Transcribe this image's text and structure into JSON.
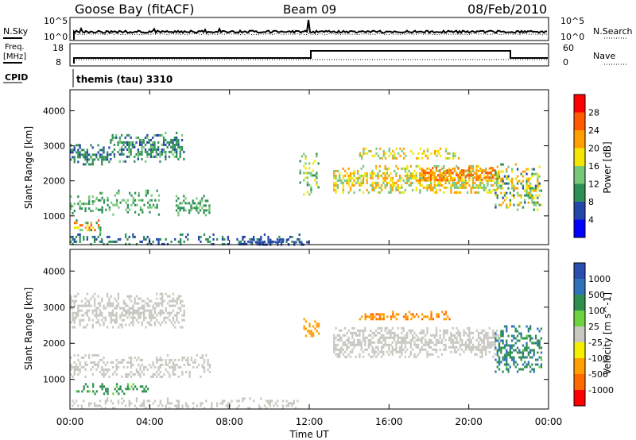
{
  "header": {
    "title": "Goose Bay (fitACF)",
    "beam": "Beam 09",
    "date": "08/Feb/2010"
  },
  "noise_panel": {
    "left_label": "N.Sky",
    "left_ticks": [
      "10^5",
      "10^0"
    ],
    "right_label": "N.Search",
    "right_ticks": [
      "10^5",
      "10^0"
    ]
  },
  "freq_panel": {
    "left_label_line1": "Freq.",
    "left_label_line2": "[MHz]",
    "left_ticks": [
      "18",
      "8"
    ],
    "right_label": "Nave",
    "right_ticks": [
      "60",
      "0"
    ],
    "cpid_label": "CPID",
    "cpid_text": "themis (tau) 3310"
  },
  "colors": {
    "power": [
      "#0000ff",
      "#2346a8",
      "#2e8f57",
      "#78c87a",
      "#f4e600",
      "#ff9f00",
      "#ff5a00",
      "#ff0000"
    ],
    "velocity": [
      "#2a4db0",
      "#2f72b8",
      "#2f8f4f",
      "#6fd33f",
      "#c8c8c0",
      "#f7ef00",
      "#ff9f00",
      "#ff6a00",
      "#ff0000"
    ]
  },
  "chart_data": [
    {
      "type": "heatmap",
      "title": "",
      "xlabel": "",
      "ylabel": "Slant Range [km]",
      "xlim": [
        0,
        24
      ],
      "ylim": [
        180,
        4600
      ],
      "y_ticks": [
        1000,
        2000,
        3000,
        4000
      ],
      "colorbar": {
        "label": "Power [dB]",
        "range": [
          0,
          32
        ],
        "tick_values": [
          4,
          8,
          12,
          16,
          20,
          24,
          28
        ],
        "tick_labels": [
          "4",
          "8",
          "12",
          "16",
          "20",
          "24",
          "28"
        ]
      },
      "scatter_regions": [
        {
          "t": [
            0.0,
            2.0
          ],
          "r": [
            2450,
            3050
          ],
          "values": [
            6,
            12
          ],
          "density": 0.5
        },
        {
          "t": [
            2.0,
            5.7
          ],
          "r": [
            2550,
            3400
          ],
          "values": [
            6,
            14
          ],
          "density": 0.5
        },
        {
          "t": [
            0.0,
            1.3
          ],
          "r": [
            1100,
            1650
          ],
          "values": [
            8,
            16
          ],
          "density": 0.4
        },
        {
          "t": [
            1.3,
            4.5
          ],
          "r": [
            1050,
            1750
          ],
          "values": [
            8,
            16
          ],
          "density": 0.25
        },
        {
          "t": [
            5.3,
            7.0
          ],
          "r": [
            1050,
            1600
          ],
          "values": [
            8,
            14
          ],
          "density": 0.45
        },
        {
          "t": [
            0.2,
            1.5
          ],
          "r": [
            550,
            900
          ],
          "values": [
            10,
            28
          ],
          "density": 0.5
        },
        {
          "t": [
            0.0,
            11.5
          ],
          "r": [
            200,
            500
          ],
          "values": [
            4,
            12
          ],
          "density": 0.3
        },
        {
          "t": [
            9.0,
            12.0
          ],
          "r": [
            180,
            350
          ],
          "values": [
            4,
            8
          ],
          "density": 0.5
        },
        {
          "t": [
            11.5,
            12.5
          ],
          "r": [
            1600,
            2800
          ],
          "values": [
            8,
            20
          ],
          "density": 0.3
        },
        {
          "t": [
            13.2,
            21.5
          ],
          "r": [
            1650,
            2450
          ],
          "values": [
            12,
            24
          ],
          "density": 0.6
        },
        {
          "t": [
            17.5,
            21.3
          ],
          "r": [
            2000,
            2400
          ],
          "values": [
            20,
            28
          ],
          "density": 0.6
        },
        {
          "t": [
            14.5,
            19.5
          ],
          "r": [
            2650,
            2950
          ],
          "values": [
            12,
            24
          ],
          "density": 0.4
        },
        {
          "t": [
            21.3,
            23.6
          ],
          "r": [
            1200,
            2500
          ],
          "values": [
            6,
            24
          ],
          "density": 0.45
        }
      ]
    },
    {
      "type": "heatmap",
      "title": "",
      "xlabel": "Time UT",
      "ylabel": "Slant Range [km]",
      "xlim": [
        0,
        24
      ],
      "ylim": [
        180,
        4600
      ],
      "y_ticks": [
        1000,
        2000,
        3000,
        4000
      ],
      "x_ticks": [
        0,
        4,
        8,
        12,
        16,
        20,
        24
      ],
      "x_tick_labels": [
        "00:00",
        "04:00",
        "08:00",
        "12:00",
        "16:00",
        "20:00",
        "00:00"
      ],
      "colorbar": {
        "label": "Velocity [m s^-1]",
        "tick_labels": [
          "1000",
          "500",
          "100",
          "25",
          "-25",
          "-100",
          "-500",
          "-1000"
        ]
      },
      "scatter_regions": [
        {
          "t": [
            0.0,
            5.7
          ],
          "r": [
            2450,
            3400
          ],
          "values": [
            -25,
            25
          ],
          "density": 0.5
        },
        {
          "t": [
            0.0,
            7.0
          ],
          "r": [
            1050,
            1700
          ],
          "values": [
            -25,
            25
          ],
          "density": 0.4
        },
        {
          "t": [
            0.2,
            4.0
          ],
          "r": [
            600,
            900
          ],
          "values": [
            50,
            300
          ],
          "density": 0.4
        },
        {
          "t": [
            0.0,
            11.5
          ],
          "r": [
            200,
            500
          ],
          "values": [
            -25,
            25
          ],
          "density": 0.3
        },
        {
          "t": [
            11.7,
            12.5
          ],
          "r": [
            2200,
            2700
          ],
          "values": [
            -500,
            -100
          ],
          "density": 0.4
        },
        {
          "t": [
            13.2,
            21.5
          ],
          "r": [
            1650,
            2450
          ],
          "values": [
            -25,
            25
          ],
          "density": 0.6
        },
        {
          "t": [
            14.5,
            19.0
          ],
          "r": [
            2650,
            2900
          ],
          "values": [
            -700,
            -100
          ],
          "density": 0.5
        },
        {
          "t": [
            21.3,
            23.6
          ],
          "r": [
            1200,
            2500
          ],
          "values": [
            50,
            800
          ],
          "density": 0.45
        }
      ]
    }
  ]
}
